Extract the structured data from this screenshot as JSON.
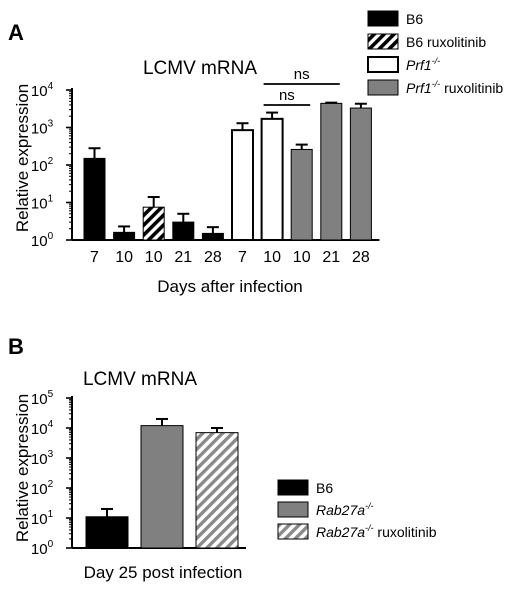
{
  "panels": [
    {
      "letter": "A"
    },
    {
      "letter": "B"
    }
  ],
  "chart_data": [
    {
      "type": "bar",
      "title": "LCMV mRNA",
      "ylabel": "Relative expression",
      "xlabel": "Days after infection",
      "yscale": "log",
      "ylim": [
        1,
        10000
      ],
      "y_ticks": [
        {
          "value": 1,
          "base": "10",
          "exp": "0"
        },
        {
          "value": 10,
          "base": "10",
          "exp": "1"
        },
        {
          "value": 100,
          "base": "10",
          "exp": "2"
        },
        {
          "value": 1000,
          "base": "10",
          "exp": "3"
        },
        {
          "value": 10000,
          "base": "10",
          "exp": "4"
        }
      ],
      "legend_placement": "top-right",
      "series": [
        {
          "name": "B6",
          "pattern": "solid",
          "color": "#000000"
        },
        {
          "name": "B6 ruxolitinib",
          "pattern": "hatch",
          "color": "#000000"
        },
        {
          "name_main": "Prf1",
          "name_sup": "-/-",
          "name_suffix": "",
          "pattern": "open",
          "color": "#ffffff"
        },
        {
          "name_main": "Prf1",
          "name_sup": "-/-",
          "name_suffix": " ruxolitinib",
          "pattern": "solid",
          "color": "#808080"
        }
      ],
      "bars": [
        {
          "label": "7",
          "series": 0,
          "value": 150,
          "err": 280
        },
        {
          "label": "10",
          "series": 0,
          "value": 1.6,
          "err": 2.3
        },
        {
          "label": "10",
          "series": 1,
          "value": 7.5,
          "err": 14
        },
        {
          "label": "21",
          "series": 0,
          "value": 3,
          "err": 5
        },
        {
          "label": "28",
          "series": 0,
          "value": 1.5,
          "err": 2.2
        },
        {
          "label": "7",
          "series": 2,
          "value": 850,
          "err": 1300
        },
        {
          "label": "10",
          "series": 2,
          "value": 1700,
          "err": 2500
        },
        {
          "label": "10",
          "series": 3,
          "value": 260,
          "err": 350
        },
        {
          "label": "21",
          "series": 3,
          "value": 4400,
          "err": 4600
        },
        {
          "label": "28",
          "series": 3,
          "value": 3300,
          "err": 4300
        }
      ],
      "annotations": [
        {
          "text": "ns",
          "from_bar": 6,
          "to_bar": 7
        },
        {
          "text": "ns",
          "from_bar": 6,
          "to_bar": 8
        }
      ]
    },
    {
      "type": "bar",
      "title": "LCMV mRNA",
      "ylabel": "Relative expression",
      "xlabel": "Day 25 post infection",
      "yscale": "log",
      "ylim": [
        1,
        100000
      ],
      "y_ticks": [
        {
          "value": 1,
          "base": "10",
          "exp": "0"
        },
        {
          "value": 10,
          "base": "10",
          "exp": "1"
        },
        {
          "value": 100,
          "base": "10",
          "exp": "2"
        },
        {
          "value": 1000,
          "base": "10",
          "exp": "3"
        },
        {
          "value": 10000,
          "base": "10",
          "exp": "4"
        },
        {
          "value": 100000,
          "base": "10",
          "exp": "5"
        }
      ],
      "legend_placement": "right",
      "series": [
        {
          "name": "B6",
          "pattern": "solid",
          "color": "#000000"
        },
        {
          "name_main": "Rab27a",
          "name_sup": "-/-",
          "name_suffix": "",
          "pattern": "solid",
          "color": "#808080"
        },
        {
          "name_main": "Rab27a",
          "name_sup": "-/-",
          "name_suffix": " ruxolitinib",
          "pattern": "hatch",
          "color": "#808080"
        }
      ],
      "bars": [
        {
          "series": 0,
          "value": 11,
          "err": 20
        },
        {
          "series": 1,
          "value": 12000,
          "err": 20000
        },
        {
          "series": 2,
          "value": 7000,
          "err": 10000
        }
      ]
    }
  ]
}
